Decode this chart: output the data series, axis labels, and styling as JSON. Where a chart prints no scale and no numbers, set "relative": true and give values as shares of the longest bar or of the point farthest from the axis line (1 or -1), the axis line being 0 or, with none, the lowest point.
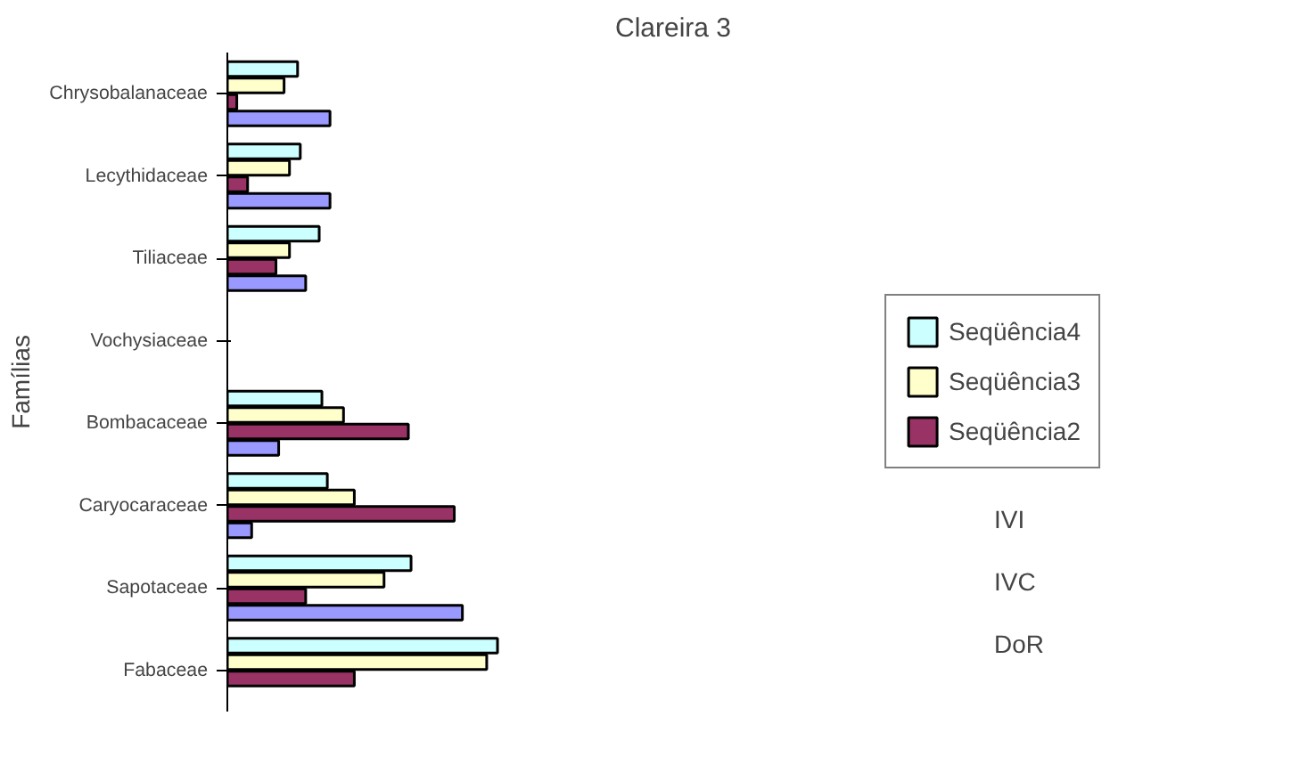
{
  "chart_data": {
    "type": "bar",
    "orientation": "horizontal",
    "relative": true,
    "title": "Clareira 3",
    "ylabel": "Famílias",
    "categories": [
      "Chrysobalanaceae",
      "Lecythidaceae",
      "Tiliaceae",
      "Vochysiaceae",
      "Bombacaceae",
      "Caryocaraceae",
      "Sapotaceae",
      "Fabaceae"
    ],
    "series": [
      {
        "name": "Seqüência4",
        "color": "#ccffff",
        "values": [
          0.26,
          0.27,
          0.34,
          null,
          0.35,
          0.37,
          0.68,
          1
        ]
      },
      {
        "name": "Seqüência3",
        "color": "#ffffcc",
        "values": [
          0.21,
          0.23,
          0.23,
          null,
          0.43,
          0.47,
          0.58,
          0.96
        ]
      },
      {
        "name": "Seqüência2",
        "color": "#993366",
        "values": [
          0.035,
          0.075,
          0.18,
          null,
          0.67,
          0.84,
          0.29,
          0.47
        ]
      },
      {
        "color": "#9999ff",
        "values": [
          0.38,
          0.38,
          0.29,
          null,
          0.19,
          0.09,
          0.87,
          null
        ]
      }
    ],
    "legend": "right",
    "grid": false,
    "annotations": [
      "IVI",
      "IVC",
      "DoR"
    ]
  }
}
